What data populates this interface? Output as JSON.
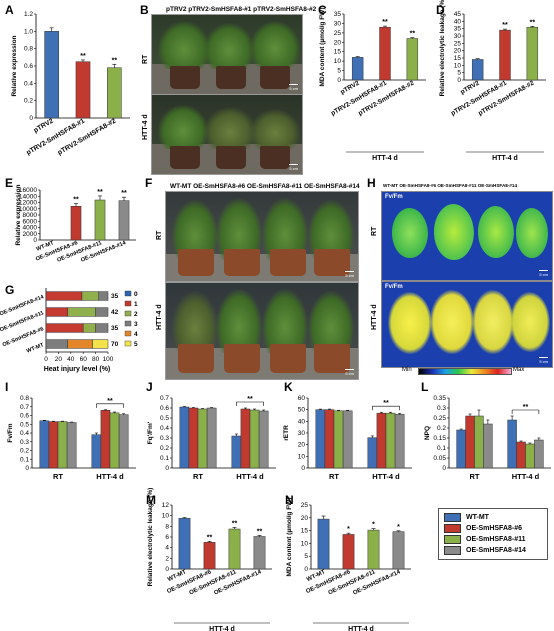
{
  "colors": {
    "blue": "#3f6fb5",
    "red": "#c03a30",
    "green": "#8bb04a",
    "gray": "#8a8a8a",
    "white": "#f4f4f4",
    "heat0": "#2f63b5",
    "heat1": "#c43a31",
    "heat2": "#8fb04d",
    "heat3": "#7d7d7d",
    "heat4": "#e3862a",
    "heat5": "#f4e24a"
  },
  "panels": {
    "A": "A",
    "B": "B",
    "C": "C",
    "D": "D",
    "E": "E",
    "F": "F",
    "G": "G",
    "H": "H",
    "I": "I",
    "J": "J",
    "K": "K",
    "L": "L",
    "M": "M",
    "N": "N"
  },
  "photo_B": {
    "header": "pTRV2 pTRV2-SmHSFA8-#1 pTRV2-SmHSFA8-#2",
    "row1": "RT",
    "row2": "HTT-4 d",
    "scale1": "5 cm",
    "scale2": "5 cm"
  },
  "photo_F": {
    "header": "WT-MT OE-SmHSFA8-#6 OE-SmHSFA8-#11 OE-SmHSFA8-#14",
    "row1": "RT",
    "row2": "HTT-4 d",
    "scale1": "5 cm",
    "scale2": "5 cm"
  },
  "photo_H": {
    "header": "WT-MT OE-SmHSFA8-#6 OE-SmHSFA8-#11 OE-SmHSFA8-#14",
    "row1": "RT",
    "row2": "HTT-4 d",
    "inner1": "Fv/Fm",
    "inner2": "Fv/Fm",
    "scale1": "5 cm",
    "scale2": "5 cm",
    "bar_min": "Min",
    "bar_max": "Max"
  },
  "legend": {
    "items": [
      "WT-MT",
      "OE-SmHSFA8-#6",
      "OE-SmHSFA8-#11",
      "OE-SmHSFA8-#14"
    ]
  },
  "chart_data": [
    {
      "panel": "A",
      "type": "bar",
      "categories": [
        "pTRV2",
        "pTRV2-SmHSFA8-#1",
        "pTRV2-SmHSFA8-#2"
      ],
      "values": [
        1.0,
        0.65,
        0.58
      ],
      "errors": [
        0.04,
        0.02,
        0.04
      ],
      "sig": [
        "",
        "**",
        "**"
      ],
      "ylabel": "Relative expression",
      "ylim": [
        0,
        1.2
      ],
      "yticks": [
        "0",
        "0.2",
        "0.4",
        "0.6",
        "0.8",
        "1.0",
        "1.2"
      ],
      "xtitle": ""
    },
    {
      "panel": "C",
      "type": "bar",
      "categories": [
        "pTRV2",
        "pTRV2-SmHSFA8-#1",
        "pTRV2-SmHSFA8-#2"
      ],
      "values": [
        12,
        28,
        22
      ],
      "errors": [
        0.4,
        0.6,
        0.5
      ],
      "sig": [
        "",
        "**",
        "**"
      ],
      "ylabel": "MDA content (µmol/g FW)",
      "ylim": [
        0,
        35
      ],
      "yticks": [
        "0",
        "5",
        "10",
        "15",
        "20",
        "25",
        "30",
        "35"
      ],
      "xtitle": "HTT-4 d"
    },
    {
      "panel": "D",
      "type": "bar",
      "categories": [
        "pTRV2",
        "pTRV2-SmHSFA8-#1",
        "pTRV2-SmHSFA8-#2"
      ],
      "values": [
        14,
        34,
        36
      ],
      "errors": [
        0.5,
        0.7,
        0.6
      ],
      "sig": [
        "",
        "**",
        "**"
      ],
      "ylabel": "Relative electrolytic leakage (%)",
      "ylim": [
        0,
        45
      ],
      "yticks": [
        "0",
        "5",
        "10",
        "15",
        "20",
        "25",
        "30",
        "35",
        "40",
        "45"
      ],
      "xtitle": "HTT-4 d"
    },
    {
      "panel": "E",
      "type": "bar",
      "categories": [
        "WT-MT",
        "OE-SmHSFA8-#6",
        "OE-SmHSFA8-#11",
        "OE-SmHSFA8-#14"
      ],
      "values": [
        0,
        10800,
        12800,
        12600
      ],
      "errors": [
        0,
        900,
        1300,
        1100
      ],
      "sig": [
        "",
        "**",
        "**",
        "**"
      ],
      "ylabel": "Relative expression",
      "ylim": [
        0,
        16000
      ],
      "yticks": [
        "0",
        "2000",
        "4000",
        "6000",
        "8000",
        "10000",
        "12000",
        "14000",
        "16000"
      ],
      "xtitle": ""
    },
    {
      "panel": "G",
      "type": "stacked-bar",
      "categories": [
        "OE-SmHSFA8-#14",
        "OE-SmHSFA8-#11",
        "OE-SmHSFA8-#6",
        "WT-MT"
      ],
      "right_values": [
        "35",
        "42",
        "35",
        "70"
      ],
      "xlabel": "Heat injury level (%)",
      "xticks": [
        "0",
        "20",
        "40",
        "60",
        "80",
        "100"
      ],
      "legend_labels": [
        "0",
        "1",
        "2",
        "3",
        "4",
        "5"
      ],
      "series": [
        {
          "name": "0",
          "values": [
            0,
            0,
            0,
            0
          ]
        },
        {
          "name": "1",
          "values": [
            58,
            35,
            60,
            0
          ]
        },
        {
          "name": "2",
          "values": [
            27,
            45,
            20,
            0
          ]
        },
        {
          "name": "3",
          "values": [
            15,
            20,
            20,
            35
          ]
        },
        {
          "name": "4",
          "values": [
            0,
            0,
            0,
            40
          ]
        },
        {
          "name": "5",
          "values": [
            0,
            0,
            0,
            25
          ]
        }
      ]
    },
    {
      "panel": "I",
      "type": "grouped-bar",
      "categories": [
        "RT",
        "HTT-4 d"
      ],
      "series": [
        {
          "name": "WT-MT",
          "values": [
            0.54,
            0.38
          ],
          "errors": [
            0.005,
            0.02
          ]
        },
        {
          "name": "OE-SmHSFA8-#6",
          "values": [
            0.53,
            0.66
          ],
          "errors": [
            0.005,
            0.005
          ]
        },
        {
          "name": "OE-SmHSFA8-#11",
          "values": [
            0.53,
            0.63
          ],
          "errors": [
            0.005,
            0.01
          ]
        },
        {
          "name": "OE-SmHSFA8-#14",
          "values": [
            0.52,
            0.61
          ],
          "errors": [
            0.005,
            0.01
          ]
        }
      ],
      "sig": "**",
      "ylabel": "Fv/Fm",
      "ylim": [
        0,
        0.8
      ],
      "yticks": [
        "0",
        "0.1",
        "0.2",
        "0.3",
        "0.4",
        "0.5",
        "0.6",
        "0.7",
        "0.8"
      ]
    },
    {
      "panel": "J",
      "type": "grouped-bar",
      "categories": [
        "RT",
        "HTT-4 d"
      ],
      "series": [
        {
          "name": "WT-MT",
          "values": [
            0.61,
            0.32
          ],
          "errors": [
            0.005,
            0.02
          ]
        },
        {
          "name": "OE-SmHSFA8-#6",
          "values": [
            0.6,
            0.59
          ],
          "errors": [
            0.005,
            0.01
          ]
        },
        {
          "name": "OE-SmHSFA8-#11",
          "values": [
            0.59,
            0.58
          ],
          "errors": [
            0.005,
            0.01
          ]
        },
        {
          "name": "OE-SmHSFA8-#14",
          "values": [
            0.6,
            0.57
          ],
          "errors": [
            0.005,
            0.01
          ]
        }
      ],
      "sig": "**",
      "ylabel": "Fq'/Fm'",
      "ylim": [
        0,
        0.7
      ],
      "yticks": [
        "0",
        "0.1",
        "0.2",
        "0.3",
        "0.4",
        "0.5",
        "0.6",
        "0.7"
      ]
    },
    {
      "panel": "K",
      "type": "grouped-bar",
      "categories": [
        "RT",
        "HTT-4 d"
      ],
      "series": [
        {
          "name": "WT-MT",
          "values": [
            50,
            26
          ],
          "errors": [
            0.5,
            1.5
          ]
        },
        {
          "name": "OE-SmHSFA8-#6",
          "values": [
            50,
            47
          ],
          "errors": [
            0.5,
            0.8
          ]
        },
        {
          "name": "OE-SmHSFA8-#11",
          "values": [
            49,
            47
          ],
          "errors": [
            0.5,
            0.8
          ]
        },
        {
          "name": "OE-SmHSFA8-#14",
          "values": [
            49,
            46
          ],
          "errors": [
            0.5,
            0.8
          ]
        }
      ],
      "sig": "**",
      "ylabel": "rETR",
      "ylim": [
        0,
        60
      ],
      "yticks": [
        "0",
        "10",
        "20",
        "30",
        "40",
        "50",
        "60"
      ]
    },
    {
      "panel": "L",
      "type": "grouped-bar",
      "categories": [
        "RT",
        "HTT-4 d"
      ],
      "series": [
        {
          "name": "WT-MT",
          "values": [
            0.19,
            0.24
          ],
          "errors": [
            0.005,
            0.02
          ]
        },
        {
          "name": "OE-SmHSFA8-#6",
          "values": [
            0.26,
            0.13
          ],
          "errors": [
            0.01,
            0.005
          ]
        },
        {
          "name": "OE-SmHSFA8-#11",
          "values": [
            0.26,
            0.12
          ],
          "errors": [
            0.03,
            0.005
          ]
        },
        {
          "name": "OE-SmHSFA8-#14",
          "values": [
            0.22,
            0.14
          ],
          "errors": [
            0.02,
            0.01
          ]
        }
      ],
      "sig": "**",
      "ylabel": "NPQ",
      "ylim": [
        0,
        0.35
      ],
      "yticks": [
        "0",
        "0.05",
        "0.1",
        "0.15",
        "0.2",
        "0.25",
        "0.3",
        "0.35"
      ]
    },
    {
      "panel": "M",
      "type": "bar",
      "categories": [
        "WT-MT",
        "OE-SmHSFA8-#6",
        "OE-SmHSFA8-#11",
        "OE-SmHSFA8-#14"
      ],
      "values": [
        9.5,
        5.0,
        7.5,
        6.1
      ],
      "errors": [
        0.15,
        0.2,
        0.3,
        0.2
      ],
      "sig": [
        "",
        "**",
        "**",
        "**"
      ],
      "ylabel": "Relative electrolytic leakage (%)",
      "ylim": [
        0,
        12
      ],
      "yticks": [
        "0",
        "2",
        "4",
        "6",
        "8",
        "10",
        "12"
      ],
      "xtitle": "HTT-4 d"
    },
    {
      "panel": "N",
      "type": "bar",
      "categories": [
        "WT-MT",
        "OE-SmHSFA8-#6",
        "OE-SmHSFA8-#11",
        "OE-SmHSFA8-#14"
      ],
      "values": [
        19.5,
        13.5,
        15.2,
        14.6
      ],
      "errors": [
        1.2,
        0.5,
        0.6,
        0.3
      ],
      "sig": [
        "",
        "*",
        "*",
        "*"
      ],
      "ylabel": "MDA content (µmol/g FW)",
      "ylim": [
        0,
        25
      ],
      "yticks": [
        "0",
        "5",
        "10",
        "15",
        "20",
        "25"
      ],
      "xtitle": "HTT-4 d"
    }
  ]
}
